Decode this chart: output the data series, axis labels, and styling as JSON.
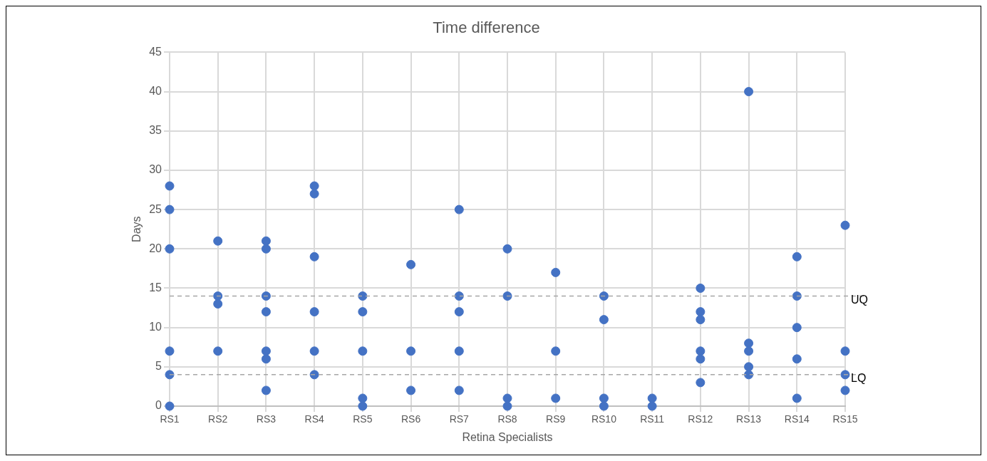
{
  "chart_data": {
    "type": "scatter",
    "title": "Time difference",
    "xlabel": "Retina Specialists",
    "ylabel": "Days",
    "categories": [
      "RS1",
      "RS2",
      "RS3",
      "RS4",
      "RS5",
      "RS6",
      "RS7",
      "RS8",
      "RS9",
      "RS10",
      "RS11",
      "RS12",
      "RS13",
      "RS14",
      "RS15"
    ],
    "series": [
      {
        "color": "#4472c4",
        "x": [
          "RS1",
          "RS1",
          "RS1",
          "RS1",
          "RS1",
          "RS1",
          "RS2",
          "RS2",
          "RS2",
          "RS2",
          "RS3",
          "RS3",
          "RS3",
          "RS3",
          "RS3",
          "RS3",
          "RS3",
          "RS4",
          "RS4",
          "RS4",
          "RS4",
          "RS4",
          "RS4",
          "RS5",
          "RS5",
          "RS5",
          "RS5",
          "RS5",
          "RS6",
          "RS6",
          "RS6",
          "RS7",
          "RS7",
          "RS7",
          "RS7",
          "RS7",
          "RS8",
          "RS8",
          "RS8",
          "RS8",
          "RS9",
          "RS9",
          "RS9",
          "RS10",
          "RS10",
          "RS10",
          "RS10",
          "RS11",
          "RS11",
          "RS12",
          "RS12",
          "RS12",
          "RS12",
          "RS12",
          "RS12",
          "RS13",
          "RS13",
          "RS13",
          "RS13",
          "RS13",
          "RS14",
          "RS14",
          "RS14",
          "RS14",
          "RS14",
          "RS15",
          "RS15",
          "RS15",
          "RS15"
        ],
        "values": [
          28,
          25,
          20,
          7,
          4,
          0,
          21,
          14,
          13,
          7,
          21,
          20,
          14,
          12,
          7,
          6,
          2,
          28,
          27,
          19,
          12,
          7,
          4,
          14,
          12,
          7,
          1,
          0,
          18,
          7,
          2,
          25,
          14,
          12,
          7,
          2,
          20,
          14,
          1,
          0,
          17,
          7,
          1,
          14,
          11,
          1,
          0,
          1,
          0,
          15,
          12,
          11,
          7,
          6,
          3,
          40,
          8,
          7,
          5,
          4,
          19,
          14,
          10,
          6,
          1,
          23,
          7,
          4,
          2
        ]
      }
    ],
    "ylim": [
      0,
      45
    ],
    "yticks": [
      0,
      5,
      10,
      15,
      20,
      25,
      30,
      35,
      40,
      45
    ],
    "grid": true,
    "legend": false,
    "marker": "circle",
    "ref_lines": [
      {
        "axis": "y",
        "value": 14,
        "label": "UQ",
        "color": "#a6a6a6",
        "line_style": "dashed"
      },
      {
        "axis": "y",
        "value": 4,
        "label": "LQ",
        "color": "#a6a6a6",
        "line_style": "dashed"
      }
    ]
  }
}
